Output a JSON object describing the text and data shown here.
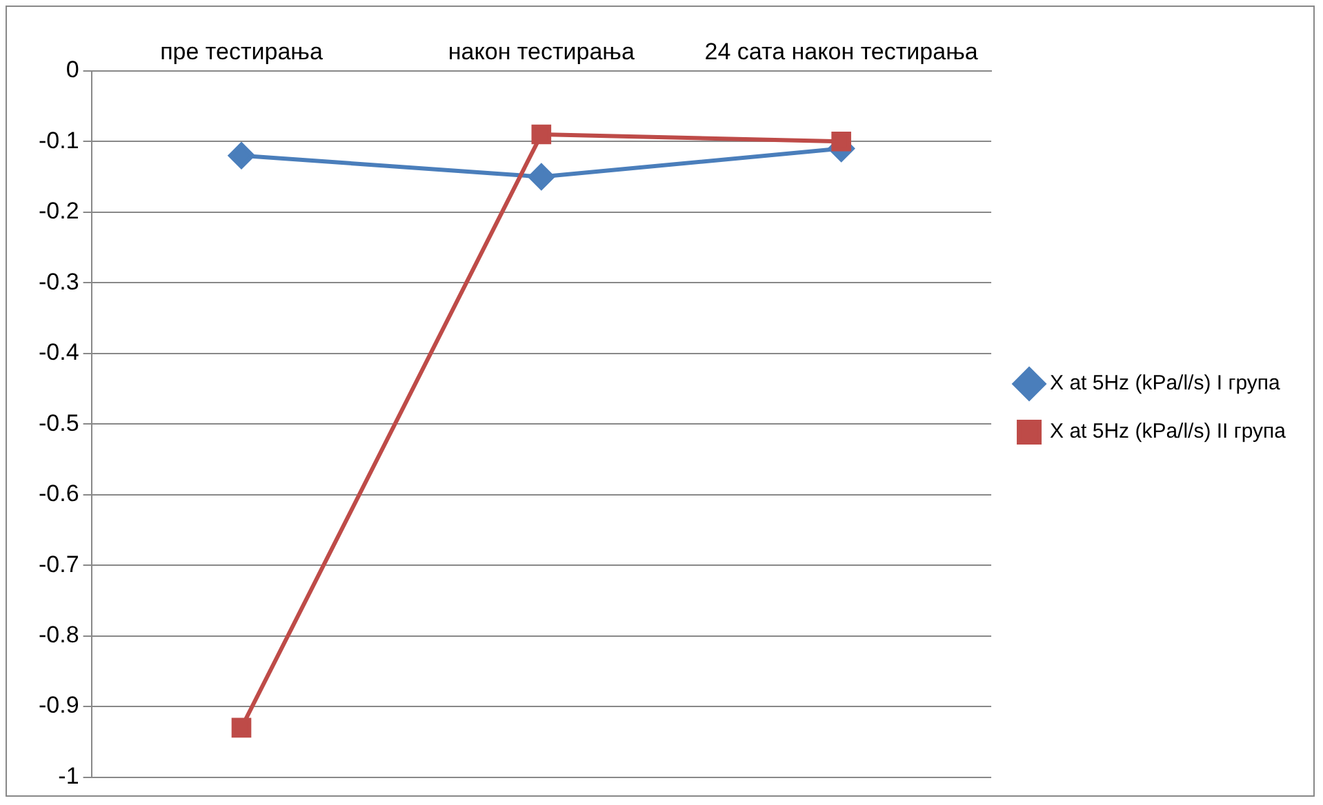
{
  "chart_data": {
    "type": "line",
    "categories": [
      "пре тестирања",
      "након тестирања",
      "24 сата након тестирања"
    ],
    "series": [
      {
        "name": "X at 5Hz (kPa/l/s) I група",
        "color": "#4a7ebb",
        "values": [
          -0.12,
          -0.15,
          -0.11
        ],
        "marker": "diamond"
      },
      {
        "name": "X at 5Hz (kPa/l/s) II група",
        "color": "#be4b48",
        "values": [
          -0.93,
          -0.09,
          -0.1
        ],
        "marker": "square"
      }
    ],
    "ylim": [
      -1,
      0
    ],
    "yticks": [
      -1,
      -0.9,
      -0.8,
      -0.7,
      -0.6,
      -0.5,
      -0.4,
      -0.3,
      -0.2,
      -0.1,
      0
    ],
    "grid": "y",
    "legend": "right",
    "line_style": "solid"
  }
}
